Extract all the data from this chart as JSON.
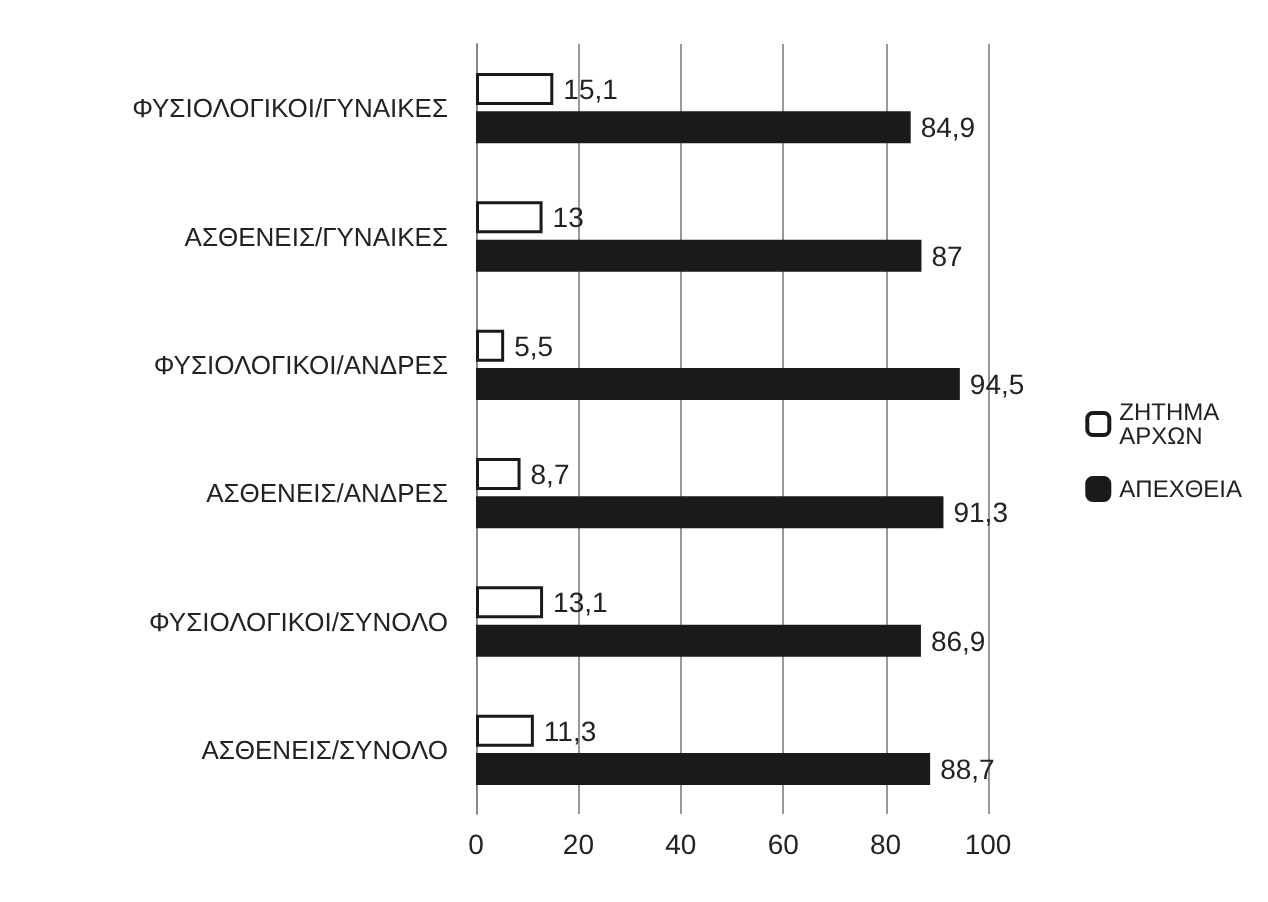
{
  "chart_data": {
    "type": "bar",
    "orientation": "horizontal",
    "categories": [
      "ΦΥΣΙΟΛΟΓΙΚΟΙ/ΓΥΝΑΙΚΕΣ",
      "ΑΣΘΕΝΕΙΣ/ΓΥΝΑΙΚΕΣ",
      "ΦΥΣΙΟΛΟΓΙΚΟΙ/ΑΝΔΡΕΣ",
      "ΑΣΘΕΝΕΙΣ/ΑΝΔΡΕΣ",
      "ΦΥΣΙΟΛΟΓΙΚΟΙ/ΣΥΝΟΛΟ",
      "ΑΣΘΕΝΕΙΣ/ΣΥΝΟΛΟ"
    ],
    "series": [
      {
        "name": "ΖΗΤΗΜΑ ΑΡΧΩΝ",
        "color": "#ffffff",
        "values": [
          15.1,
          13,
          5.5,
          8.7,
          13.1,
          11.3
        ],
        "value_labels": [
          "15,1",
          "13",
          "5,5",
          "8,7",
          "13,1",
          "11,3"
        ]
      },
      {
        "name": "ΑΠΕΧΘΕΙΑ",
        "color": "#1a1a1a",
        "values": [
          84.9,
          87,
          94.5,
          91.3,
          86.9,
          88.7
        ],
        "value_labels": [
          "84,9",
          "87",
          "94,5",
          "91,3",
          "86,9",
          "88,7"
        ]
      }
    ],
    "xlim": [
      0,
      100
    ],
    "xticks": [
      0,
      20,
      40,
      60,
      80,
      100
    ],
    "grid": "x",
    "legend": "right"
  }
}
